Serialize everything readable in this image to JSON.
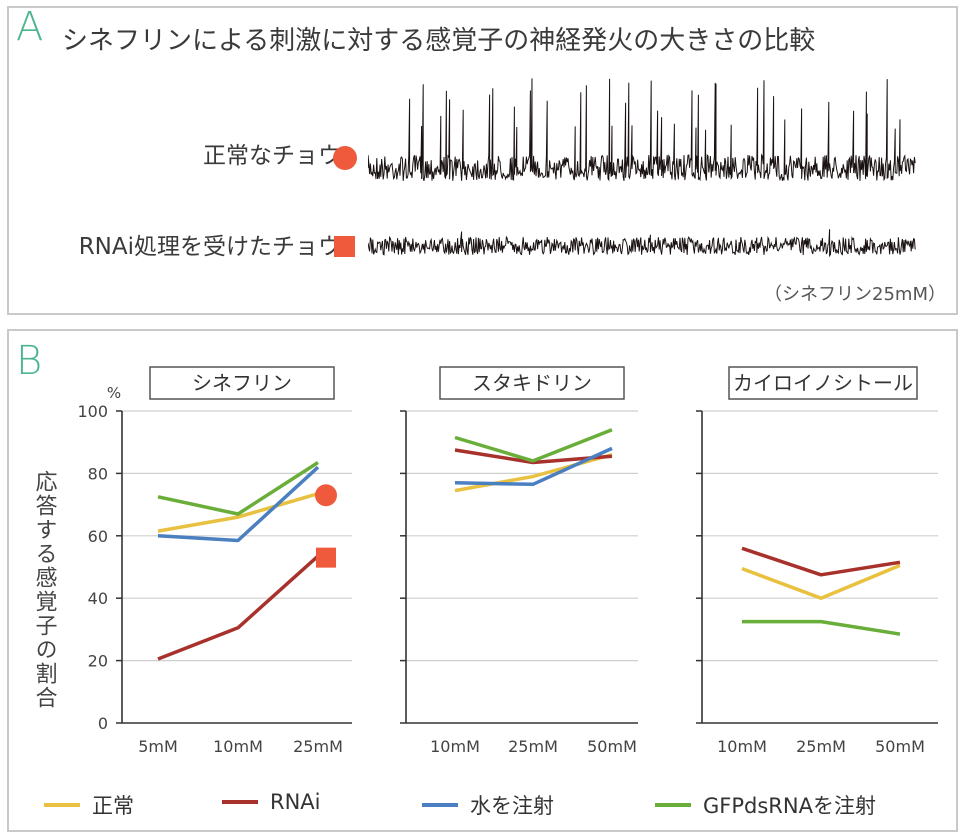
{
  "panelA": {
    "letter": "A",
    "title": "シネフリンによる刺激に対する感覚子の神経発火の大きさの比較",
    "rows": [
      {
        "label": "正常なチョウ",
        "marker": "circle"
      },
      {
        "label": "RNAi処理を受けたチョウ",
        "marker": "square"
      }
    ],
    "note": "（シネフリン25mM）"
  },
  "panelB": {
    "letter": "B",
    "y_unit": "%",
    "ylabel": "応答する感覚子の割合"
  },
  "colors": {
    "normal": "#e9c140",
    "rnai": "#a8312b",
    "water": "#4a7fc0",
    "gfp": "#6aae3a",
    "marker": "#f05a3c",
    "accent": "#4bb58d"
  },
  "chart_data": [
    {
      "type": "line",
      "title": "シネフリン",
      "categories": [
        "5mM",
        "10mM",
        "25mM"
      ],
      "ylim": [
        0,
        100
      ],
      "yticks": [
        0,
        20,
        40,
        60,
        80,
        100
      ],
      "grid": true,
      "series": [
        {
          "name": "正常",
          "values": [
            61.5,
            66,
            73.5
          ]
        },
        {
          "name": "RNAi",
          "values": [
            20.5,
            30.5,
            53.5
          ]
        },
        {
          "name": "水を注射",
          "values": [
            60,
            58.5,
            82
          ]
        },
        {
          "name": "GFPdsRNAを注射",
          "values": [
            72.5,
            67,
            83.5
          ]
        }
      ],
      "markers": [
        {
          "series": "正常",
          "category": "25mM",
          "value": 73,
          "shape": "circle"
        },
        {
          "series": "RNAi",
          "category": "25mM",
          "value": 53,
          "shape": "square"
        }
      ]
    },
    {
      "type": "line",
      "title": "スタキドリン",
      "categories": [
        "10mM",
        "25mM",
        "50mM"
      ],
      "ylim": [
        0,
        100
      ],
      "grid": true,
      "series": [
        {
          "name": "正常",
          "values": [
            74.5,
            79,
            86
          ]
        },
        {
          "name": "RNAi",
          "values": [
            87.5,
            83.5,
            85.5
          ]
        },
        {
          "name": "水を注射",
          "values": [
            77,
            76.5,
            88
          ]
        },
        {
          "name": "GFPdsRNAを注射",
          "values": [
            91.5,
            84,
            94
          ]
        }
      ]
    },
    {
      "type": "line",
      "title": "カイロイノシトール",
      "categories": [
        "10mM",
        "25mM",
        "50mM"
      ],
      "ylim": [
        0,
        100
      ],
      "grid": true,
      "series": [
        {
          "name": "正常",
          "values": [
            49.5,
            40,
            50.5
          ]
        },
        {
          "name": "RNAi",
          "values": [
            56,
            47.5,
            51.5
          ]
        },
        {
          "name": "GFPdsRNAを注射",
          "values": [
            32.5,
            32.5,
            28.5
          ]
        }
      ]
    }
  ],
  "legend": [
    {
      "label": "正常",
      "color_key": "normal"
    },
    {
      "label": "RNAi",
      "color_key": "rnai"
    },
    {
      "label": "水を注射",
      "color_key": "water"
    },
    {
      "label": "GFPdsRNAを注射",
      "color_key": "gfp"
    }
  ]
}
